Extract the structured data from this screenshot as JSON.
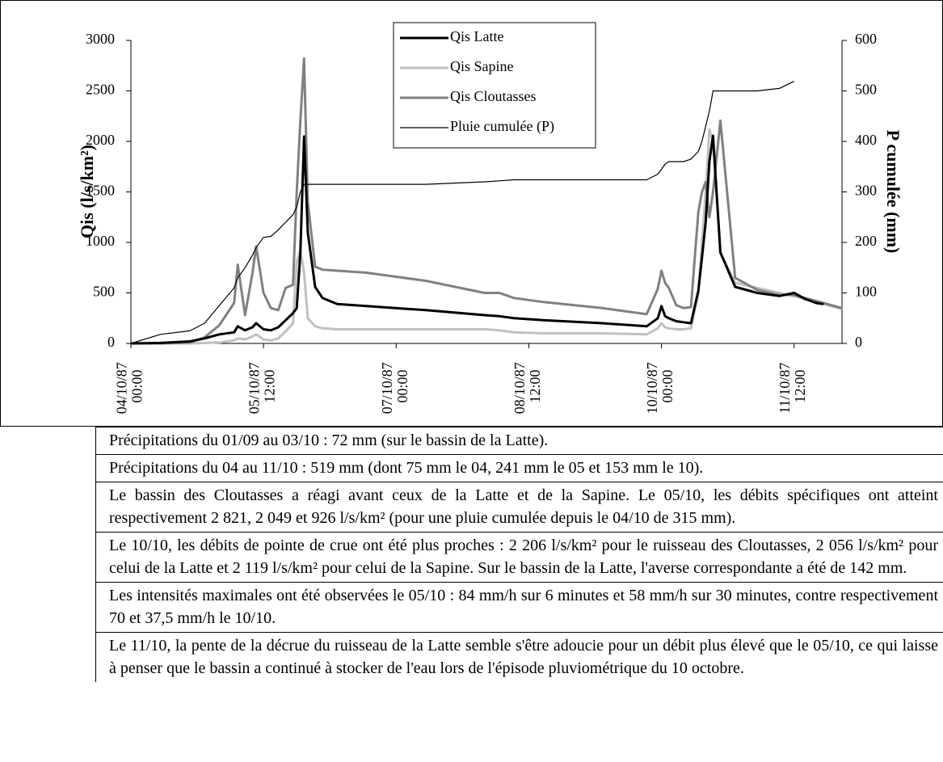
{
  "chart_data": {
    "type": "line",
    "ylabel": "Qis (l/s/km²)",
    "y2label": "P cumulée (mm)",
    "x": [
      "04/10/87 00:00",
      "04/10/87 08:00",
      "04/10/87 16:00",
      "04/10/87 20:00",
      "05/10/87 00:00",
      "05/10/87 04:00",
      "05/10/87 05:00",
      "05/10/87 07:00",
      "05/10/87 09:00",
      "05/10/87 10:00",
      "05/10/87 12:00",
      "05/10/87 14:00",
      "05/10/87 16:00",
      "05/10/87 18:00",
      "05/10/87 20:00",
      "05/10/87 21:00",
      "05/10/87 22:00",
      "05/10/87 23:00",
      "06/10/87 00:00",
      "06/10/87 02:00",
      "06/10/87 04:00",
      "06/10/87 08:00",
      "06/10/87 16:00",
      "07/10/87 08:00",
      "08/10/87 00:00",
      "08/10/87 04:00",
      "08/10/87 08:00",
      "08/10/87 16:00",
      "09/10/87 08:00",
      "09/10/87 20:00",
      "09/10/87 23:00",
      "10/10/87 00:00",
      "10/10/87 01:00",
      "10/10/87 02:00",
      "10/10/87 04:00",
      "10/10/87 06:00",
      "10/10/87 08:00",
      "10/10/87 10:00",
      "10/10/87 11:00",
      "10/10/87 12:00",
      "10/10/87 13:00",
      "10/10/87 14:00",
      "10/10/87 16:00",
      "10/10/87 20:00",
      "11/10/87 02:00",
      "11/10/87 08:00",
      "11/10/87 12:00",
      "11/10/87 15:00",
      "11/10/87 18:00",
      "11/10/87 20:00",
      "11/10/87 22:00",
      "12/10/87 01:00"
    ],
    "series": [
      {
        "name": "Qis Latte",
        "color": "#000000",
        "width": 3,
        "values": [
          0,
          5,
          20,
          50,
          90,
          110,
          170,
          130,
          160,
          200,
          140,
          130,
          160,
          230,
          300,
          350,
          900,
          2049,
          1100,
          560,
          450,
          390,
          370,
          330,
          280,
          270,
          250,
          230,
          200,
          170,
          250,
          370,
          270,
          250,
          220,
          210,
          200,
          520,
          850,
          1200,
          1800,
          2056,
          900,
          560,
          500,
          470,
          500,
          440,
          400,
          390,
          null,
          null
        ]
      },
      {
        "name": "Qis Sapine",
        "color": "#c0c0c0",
        "width": 3,
        "values": [
          0,
          0,
          0,
          5,
          10,
          30,
          50,
          40,
          70,
          90,
          40,
          30,
          50,
          120,
          200,
          800,
          926,
          700,
          250,
          170,
          150,
          140,
          140,
          140,
          140,
          130,
          110,
          100,
          100,
          90,
          150,
          200,
          160,
          150,
          140,
          140,
          150,
          500,
          1000,
          1500,
          2119,
          2000,
          900,
          600,
          550,
          500,
          470,
          440,
          410,
          390,
          370,
          340
        ]
      },
      {
        "name": "Qis Cloutasses",
        "color": "#808080",
        "width": 3,
        "values": [
          0,
          0,
          10,
          60,
          180,
          400,
          780,
          280,
          700,
          960,
          500,
          350,
          330,
          550,
          580,
          1500,
          2200,
          2821,
          1400,
          760,
          730,
          720,
          700,
          620,
          500,
          500,
          450,
          410,
          350,
          290,
          540,
          720,
          600,
          550,
          380,
          350,
          360,
          1300,
          1500,
          1600,
          1250,
          1500,
          2206,
          650,
          530,
          480,
          480,
          450,
          420,
          400,
          380,
          350
        ]
      },
      {
        "name": "Pluie cumulée (P)",
        "color": "#000000",
        "width": 1.2,
        "axis": "y2",
        "values": [
          0,
          18,
          25,
          40,
          75,
          110,
          130,
          150,
          175,
          190,
          210,
          212,
          225,
          240,
          255,
          270,
          300,
          315,
          315,
          315,
          315,
          315,
          315,
          315,
          320,
          322,
          324,
          324,
          324,
          324,
          335,
          345,
          355,
          360,
          360,
          360,
          365,
          380,
          400,
          430,
          460,
          500,
          500,
          500,
          500,
          505,
          519,
          null,
          null,
          null,
          null,
          null
        ]
      }
    ],
    "xlim": [
      "04/10/87 00:00",
      "12/10/87 01:00"
    ],
    "xticks": [
      "04/10/87 00:00",
      "05/10/87 12:00",
      "07/10/87 00:00",
      "08/10/87 12:00",
      "10/10/87 00:00",
      "11/10/87 12:00"
    ],
    "ylim": [
      0,
      3000
    ],
    "yticks": [
      0,
      500,
      1000,
      1500,
      2000,
      2500,
      3000
    ],
    "y2lim": [
      0,
      600
    ],
    "y2ticks": [
      0,
      100,
      200,
      300,
      400,
      500,
      600
    ],
    "grid": false,
    "legend": "top"
  },
  "notes": [
    "Précipitations du 01/09 au 03/10 : 72 mm (sur le bassin de la Latte).",
    "Précipitations du 04 au 11/10 : 519 mm (dont 75 mm le 04, 241 mm le 05 et 153 mm le 10).",
    "Le bassin des Cloutasses a réagi avant ceux de la Latte et de la Sapine. Le 05/10, les débits spécifiques ont atteint respectivement 2 821, 2 049 et 926 l/s/km² (pour une pluie cumulée depuis le 04/10 de 315 mm).",
    "Le 10/10, les débits de pointe de crue ont été plus proches : 2 206 l/s/km² pour le ruisseau des Cloutasses, 2 056 l/s/km² pour celui de la Latte et 2 119 l/s/km² pour celui de la Sapine. Sur le bassin de la Latte, l'averse correspondante a été de 142 mm.",
    "Les intensités maximales ont été observées le 05/10 : 84 mm/h sur 6 minutes et 58 mm/h sur 30 minutes, contre respectivement 70 et 37,5 mm/h le 10/10.",
    "Le 11/10, la pente de la décrue du ruisseau de la Latte semble s'être adoucie pour un débit plus élevé que le 05/10, ce qui laisse à penser que le bassin a continué à stocker de l'eau lors de l'épisode pluviométrique du 10 octobre."
  ]
}
